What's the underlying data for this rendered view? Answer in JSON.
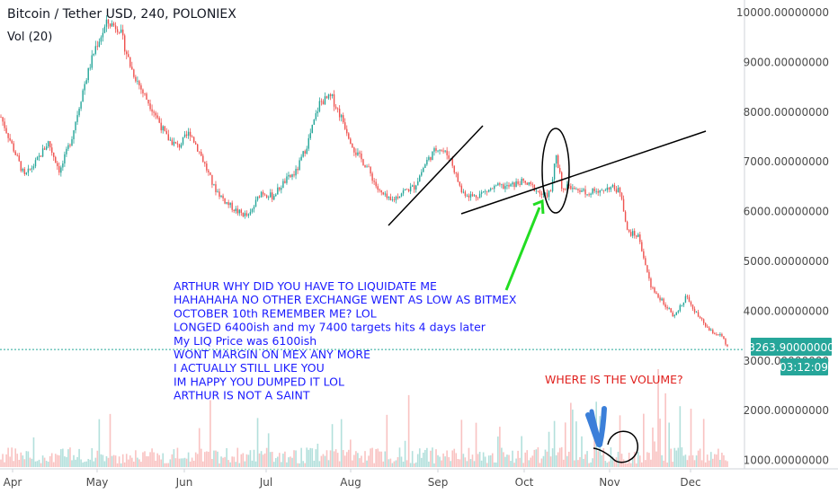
{
  "header": {
    "title": "Bitcoin / Tether USD, 240, POLONIEX",
    "indicator": "Vol (20)"
  },
  "chart_data": {
    "type": "candlestick",
    "x_labels": [
      "Apr",
      "May",
      "Jun",
      "Jul",
      "Aug",
      "Sep",
      "Oct",
      "Nov",
      "Dec"
    ],
    "y_tick_labels": [
      "10000.00000000",
      "9000.00000000",
      "8000.00000000",
      "7000.00000000",
      "6000.00000000",
      "5000.00000000",
      "4000.00000000",
      "3000.00000000",
      "2000.00000000",
      "1000.00000000"
    ],
    "ylim": [
      900,
      10200
    ],
    "price_path": [
      [
        0,
        7900
      ],
      [
        4,
        7300
      ],
      [
        8,
        6700
      ],
      [
        12,
        7000
      ],
      [
        16,
        7400
      ],
      [
        20,
        6800
      ],
      [
        24,
        7500
      ],
      [
        28,
        8500
      ],
      [
        32,
        9300
      ],
      [
        36,
        9800
      ],
      [
        40,
        9700
      ],
      [
        44,
        8900
      ],
      [
        48,
        8400
      ],
      [
        52,
        8000
      ],
      [
        56,
        7500
      ],
      [
        60,
        7300
      ],
      [
        64,
        7600
      ],
      [
        68,
        7100
      ],
      [
        72,
        6500
      ],
      [
        76,
        6200
      ],
      [
        80,
        6000
      ],
      [
        84,
        5900
      ],
      [
        88,
        6400
      ],
      [
        92,
        6300
      ],
      [
        96,
        6600
      ],
      [
        100,
        6800
      ],
      [
        104,
        7400
      ],
      [
        108,
        8200
      ],
      [
        112,
        8300
      ],
      [
        116,
        7800
      ],
      [
        120,
        7200
      ],
      [
        124,
        6900
      ],
      [
        128,
        6400
      ],
      [
        132,
        6200
      ],
      [
        136,
        6400
      ],
      [
        140,
        6500
      ],
      [
        144,
        7000
      ],
      [
        148,
        7300
      ],
      [
        152,
        7100
      ],
      [
        156,
        6400
      ],
      [
        160,
        6300
      ],
      [
        164,
        6400
      ],
      [
        168,
        6500
      ],
      [
        172,
        6500
      ],
      [
        176,
        6600
      ],
      [
        180,
        6500
      ],
      [
        184,
        6300
      ],
      [
        186,
        6400
      ],
      [
        188,
        7100
      ],
      [
        190,
        6500
      ],
      [
        194,
        6500
      ],
      [
        198,
        6400
      ],
      [
        202,
        6400
      ],
      [
        206,
        6500
      ],
      [
        210,
        6400
      ],
      [
        212,
        5600
      ],
      [
        216,
        5500
      ],
      [
        220,
        4500
      ],
      [
        224,
        4200
      ],
      [
        228,
        3900
      ],
      [
        232,
        4300
      ],
      [
        236,
        3900
      ],
      [
        240,
        3600
      ],
      [
        244,
        3500
      ],
      [
        246,
        3264
      ]
    ],
    "last_price": "3263.90000000",
    "countdown": "03:12:09",
    "colors": {
      "up": "#26a69a",
      "down": "#ef5350",
      "last_line": "#26a69a"
    },
    "grid": false,
    "annotations": {
      "note_lines": [
        "ARTHUR WHY DID YOU HAVE TO LIQUIDATE ME",
        "HAHAHAHA NO OTHER EXCHANGE WENT AS LOW AS BITMEX",
        "OCTOBER 10th REMEMBER ME? LOL",
        "LONGED 6400ish and my 7400 targets hits 4 days later",
        "My LIQ Price was 6100ish",
        "WONT MARGIN ON MEX ANY MORE",
        "I ACTUALLY STILL LIKE YOU",
        "IM HAPPY YOU DUMPED IT LOL",
        "ARTHUR IS NOT A SAINT"
      ],
      "volume_question": "WHERE IS THE VOLUME?",
      "colors": {
        "note": "#1a1aff",
        "question": "#e0211e",
        "arrow_green": "#22dd22",
        "arrow_blue": "#3b7fd9"
      }
    }
  }
}
